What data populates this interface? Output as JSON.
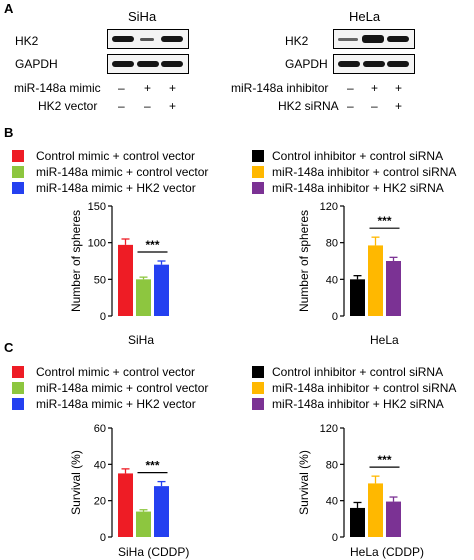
{
  "panels": {
    "a": "A",
    "b": "B",
    "c": "C"
  },
  "blots": {
    "siha": {
      "title": "SiHa",
      "row_labels": [
        "HK2",
        "GAPDH"
      ],
      "treatments": [
        {
          "label": "miR-148a mimic",
          "marks": [
            "–",
            "+",
            "+"
          ]
        },
        {
          "label": "HK2 vector",
          "marks": [
            "–",
            "–",
            "+"
          ]
        }
      ]
    },
    "hela": {
      "title": "HeLa",
      "row_labels": [
        "HK2",
        "GAPDH"
      ],
      "treatments": [
        {
          "label": "miR-148a inhibitor",
          "marks": [
            "–",
            "+",
            "+"
          ]
        },
        {
          "label": "HK2 siRNA",
          "marks": [
            "–",
            "–",
            "+"
          ]
        }
      ]
    }
  },
  "legends": {
    "siha": [
      {
        "label": "Control mimic + control vector",
        "color": "#ee1c25"
      },
      {
        "label": "miR-148a mimic + control vector",
        "color": "#8dc63f"
      },
      {
        "label": "miR-148a mimic + HK2 vector",
        "color": "#2440f0"
      }
    ],
    "hela": [
      {
        "label": "Control inhibitor + control siRNA",
        "color": "#000000"
      },
      {
        "label": "miR-148a inhibitor + control siRNA",
        "color": "#ffb800"
      },
      {
        "label": "miR-148a inhibitor + HK2 siRNA",
        "color": "#7b3294"
      }
    ]
  },
  "chart_data": [
    {
      "type": "bar",
      "panel": "B",
      "xlabel": "SiHa",
      "ylabel": "Number of spheres",
      "ylim": [
        0,
        150
      ],
      "yticks": [
        "0",
        "50",
        "100",
        "150"
      ],
      "categories": [
        "Control mimic + control vector",
        "miR-148a mimic + control vector",
        "miR-148a mimic + HK2 vector"
      ],
      "values": [
        97,
        50,
        70
      ],
      "errors": [
        8,
        3,
        5
      ],
      "colors": [
        "#ee1c25",
        "#8dc63f",
        "#2440f0"
      ],
      "significance": {
        "between": [
          1,
          2
        ],
        "label": "***"
      }
    },
    {
      "type": "bar",
      "panel": "B",
      "xlabel": "HeLa",
      "ylabel": "Number of spheres",
      "ylim": [
        0,
        120
      ],
      "yticks": [
        "0",
        "40",
        "80",
        "120"
      ],
      "categories": [
        "Control inhibitor + control siRNA",
        "miR-148a inhibitor + control siRNA",
        "miR-148a inhibitor + HK2 siRNA"
      ],
      "values": [
        40,
        77,
        60
      ],
      "errors": [
        4,
        9,
        4
      ],
      "colors": [
        "#000000",
        "#ffb800",
        "#7b3294"
      ],
      "significance": {
        "between": [
          1,
          2
        ],
        "label": "***"
      }
    },
    {
      "type": "bar",
      "panel": "C",
      "xlabel": "SiHa (CDDP)",
      "ylabel": "Survival (%)",
      "ylim": [
        0,
        60
      ],
      "yticks": [
        "0",
        "20",
        "40",
        "60"
      ],
      "categories": [
        "Control mimic + control vector",
        "miR-148a mimic + control vector",
        "miR-148a mimic + HK2 vector"
      ],
      "values": [
        35,
        14,
        28
      ],
      "errors": [
        2.5,
        1,
        2.5
      ],
      "colors": [
        "#ee1c25",
        "#8dc63f",
        "#2440f0"
      ],
      "significance": {
        "between": [
          1,
          2
        ],
        "label": "***"
      }
    },
    {
      "type": "bar",
      "panel": "C",
      "xlabel": "HeLa (CDDP)",
      "ylabel": "Survival (%)",
      "ylim": [
        0,
        120
      ],
      "yticks": [
        "0",
        "40",
        "80",
        "120"
      ],
      "categories": [
        "Control inhibitor + control siRNA",
        "miR-148a inhibitor + control siRNA",
        "miR-148a inhibitor + HK2 siRNA"
      ],
      "values": [
        32,
        59,
        39
      ],
      "errors": [
        6,
        8,
        5
      ],
      "colors": [
        "#000000",
        "#ffb800",
        "#7b3294"
      ],
      "significance": {
        "between": [
          1,
          2
        ],
        "label": "***"
      }
    }
  ]
}
